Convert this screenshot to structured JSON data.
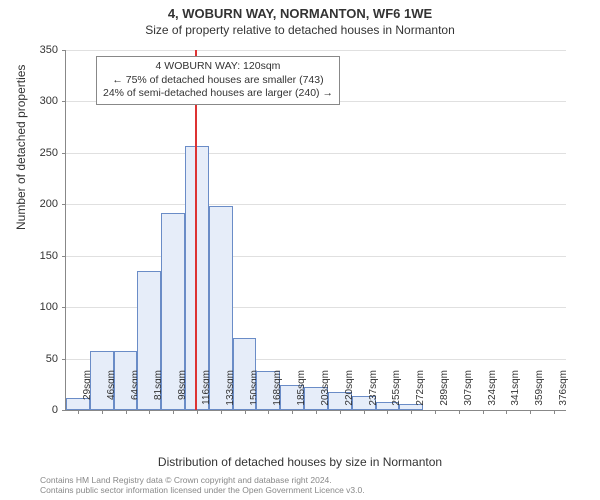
{
  "title": {
    "main": "4, WOBURN WAY, NORMANTON, WF6 1WE",
    "sub": "Size of property relative to detached houses in Normanton"
  },
  "chart": {
    "type": "histogram",
    "ylabel": "Number of detached properties",
    "xlabel": "Distribution of detached houses by size in Normanton",
    "ylim": [
      0,
      350
    ],
    "ytick_step": 50,
    "yticks": [
      0,
      50,
      100,
      150,
      200,
      250,
      300,
      350
    ],
    "xticks": [
      "29sqm",
      "46sqm",
      "64sqm",
      "81sqm",
      "98sqm",
      "116sqm",
      "133sqm",
      "150sqm",
      "168sqm",
      "185sqm",
      "203sqm",
      "220sqm",
      "237sqm",
      "255sqm",
      "272sqm",
      "289sqm",
      "307sqm",
      "324sqm",
      "341sqm",
      "359sqm",
      "376sqm"
    ],
    "values": [
      12,
      57,
      57,
      135,
      192,
      257,
      198,
      70,
      38,
      24,
      22,
      18,
      14,
      8,
      6,
      0,
      0,
      0,
      0,
      0,
      0
    ],
    "bar_fill": "#e6edf9",
    "bar_border": "#6a8cc7",
    "grid_color": "#e0e0e0",
    "axis_color": "#888888",
    "background_color": "#ffffff",
    "marker": {
      "color": "#d33",
      "position_index": 5.4,
      "box": {
        "line1": "4 WOBURN WAY: 120sqm",
        "line2": "← 75% of detached houses are smaller (743)",
        "line3": "24% of semi-detached houses are larger (240) →"
      }
    }
  },
  "footer": {
    "line1": "Contains HM Land Registry data © Crown copyright and database right 2024.",
    "line2": "Contains public sector information licensed under the Open Government Licence v3.0."
  }
}
